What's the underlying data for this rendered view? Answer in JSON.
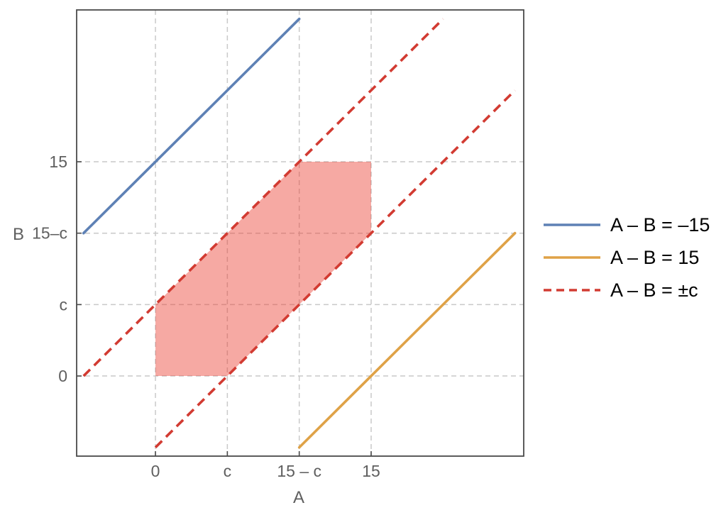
{
  "figure": {
    "background": "#ffffff",
    "chart_data": {
      "type": "line",
      "title": "",
      "xlabel": "A",
      "ylabel": "B",
      "xlim": [
        -5.48,
        25.61
      ],
      "ylim": [
        -5.61,
        25.63
      ],
      "c_value": 5,
      "grid": {
        "on": true,
        "color": "#c9c9c9",
        "dash": [
          7,
          5
        ],
        "x_values": [
          0,
          5,
          10,
          15
        ],
        "y_values": [
          0,
          5,
          10,
          15
        ]
      },
      "x_ticks": [
        {
          "value": 0,
          "label": "0"
        },
        {
          "value": 5,
          "label": "c"
        },
        {
          "value": 10,
          "label": "15 – c"
        },
        {
          "value": 15,
          "label": "15"
        }
      ],
      "y_ticks": [
        {
          "value": 0,
          "label": "0"
        },
        {
          "value": 5,
          "label": "c"
        },
        {
          "value": 10,
          "label": "15–c"
        },
        {
          "value": 15,
          "label": "15"
        }
      ],
      "series": [
        {
          "name": "A – B = –15",
          "color": "#5e81b5",
          "dashed": false,
          "points": [
            [
              -5,
              10
            ],
            [
              10,
              25
            ]
          ]
        },
        {
          "name": "A – B = 15",
          "color": "#dfa247",
          "dashed": false,
          "points": [
            [
              10,
              -5
            ],
            [
              25,
              10
            ]
          ]
        },
        {
          "name": "A – B = –c (upper dashed)",
          "color": "#d23b32",
          "dashed": true,
          "points": [
            [
              -5,
              0
            ],
            [
              20,
              25
            ]
          ]
        },
        {
          "name": "A – B = c (lower dashed)",
          "color": "#d23b32",
          "dashed": true,
          "points": [
            [
              0,
              -5
            ],
            [
              25,
              20
            ]
          ]
        }
      ],
      "region": {
        "name": "shaded feasible region: |A – B| ≤ c, 0 ≤ A ≤ 15, 0 ≤ B ≤ 15",
        "fill": "rgba(234,60,45,0.44)",
        "vertices": [
          [
            0,
            0
          ],
          [
            5,
            0
          ],
          [
            15,
            10
          ],
          [
            15,
            15
          ],
          [
            10,
            15
          ],
          [
            0,
            5
          ]
        ]
      },
      "legend": {
        "position": "right",
        "items": [
          {
            "label": "A – B = –15",
            "color": "#5e81b5",
            "dashed": false
          },
          {
            "label": "A – B = 15",
            "color": "#dfa247",
            "dashed": false
          },
          {
            "label": "A – B = ±c",
            "color": "#d23b32",
            "dashed": true
          }
        ]
      },
      "frame_color": "#4a4a4a",
      "tick_label_color": "#5f5f5f",
      "axis_label_color": "#5f5f5f"
    }
  }
}
